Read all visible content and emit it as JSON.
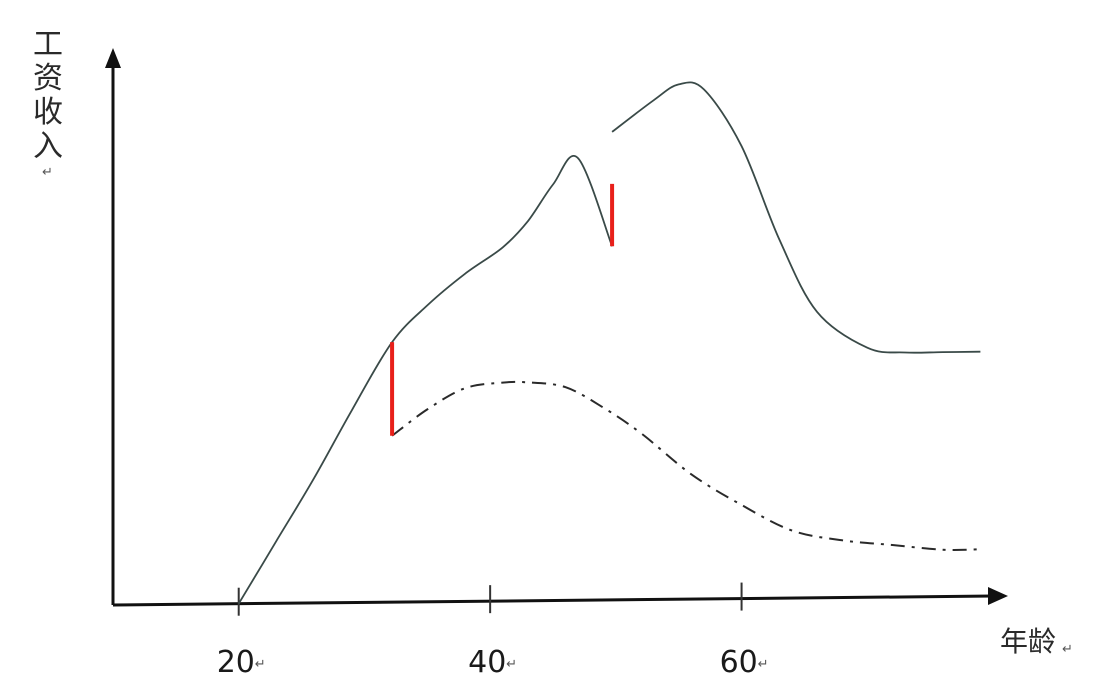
{
  "chart_data": {
    "type": "line",
    "ylabel": "工资收入",
    "xlabel": "年龄",
    "x_ticks": [
      "20",
      "40",
      "60"
    ],
    "xlim": [
      10,
      80
    ],
    "ylim": [
      0,
      100
    ],
    "grid": false,
    "series": [
      {
        "style": "solid",
        "color": "#3a4a48",
        "x": [
          20,
          23,
          26,
          29,
          32.2,
          35,
          38,
          41,
          43,
          45,
          47,
          49.7,
          53,
          55,
          57,
          60,
          63,
          66,
          70,
          73,
          76,
          79
        ],
        "y": [
          0,
          12,
          24,
          37,
          50,
          57,
          63,
          68,
          73,
          80,
          85,
          90,
          96,
          99,
          98,
          87,
          69,
          55,
          48,
          47,
          47,
          47
        ]
      },
      {
        "style": "dashdot",
        "color": "#2a2a2a",
        "x": [
          32.2,
          35,
          38,
          41,
          43,
          46,
          49,
          52,
          56,
          60,
          64,
          68,
          72,
          76,
          79
        ],
        "y": [
          32,
          37,
          41,
          42,
          42,
          41,
          37,
          32,
          24,
          18,
          13,
          11,
          10,
          9,
          9
        ]
      }
    ],
    "jumps": [
      {
        "x": 32.2,
        "y_from": 32,
        "y_to": 50,
        "color": "#e8201a"
      },
      {
        "x": 49.7,
        "y_from": 68,
        "y_to": 80,
        "color": "#e8201a"
      }
    ]
  }
}
